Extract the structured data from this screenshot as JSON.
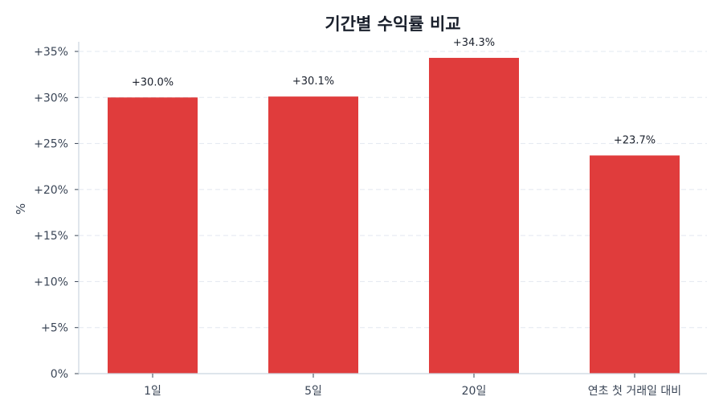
{
  "chart_data": {
    "type": "bar",
    "title": "기간별 수익률 비교",
    "xlabel": "",
    "ylabel": "%",
    "categories": [
      "1일",
      "5일",
      "20일",
      "연초 첫 거래일 대비"
    ],
    "values": [
      30.0,
      30.1,
      34.3,
      23.7
    ],
    "value_labels": [
      "+30.0%",
      "+30.1%",
      "+34.3%",
      "+23.7%"
    ],
    "ylim": [
      0,
      35
    ],
    "yticks": [
      0,
      5,
      10,
      15,
      20,
      25,
      30,
      35
    ],
    "ytick_labels": [
      "0%",
      "+5%",
      "+10%",
      "+15%",
      "+20%",
      "+25%",
      "+30%",
      "+35%"
    ],
    "grid": {
      "y": true,
      "style": "dashed"
    },
    "legend": null,
    "colors": {
      "bar": "#e03c3c",
      "grid": "#e2e8f0",
      "axis": "#cbd5e0",
      "title": "#1a202c",
      "text": "#3a4556"
    }
  }
}
